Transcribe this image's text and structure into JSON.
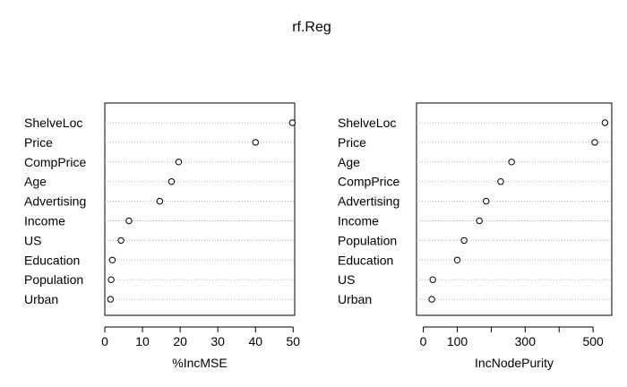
{
  "title": "rf.Reg",
  "chart_data": [
    {
      "type": "scatter",
      "title": "",
      "xlabel": "%IncMSE",
      "ylabel": "",
      "xlim": [
        0,
        50.4
      ],
      "xticks": [
        0,
        10,
        20,
        30,
        40,
        50
      ],
      "categories": [
        "ShelveLoc",
        "Price",
        "CompPrice",
        "Age",
        "Advertising",
        "Income",
        "US",
        "Education",
        "Population",
        "Urban"
      ],
      "values": [
        49.8,
        40.0,
        19.6,
        17.7,
        14.6,
        6.4,
        4.3,
        2.0,
        1.7,
        1.5
      ],
      "grid": "dotted horizontal guides"
    },
    {
      "type": "scatter",
      "title": "",
      "xlabel": "IncNodePurity",
      "ylabel": "",
      "xlim": [
        -20,
        555
      ],
      "xticks": [
        0,
        100,
        300,
        500
      ],
      "minor_ticks": [
        200,
        400
      ],
      "categories": [
        "ShelveLoc",
        "Price",
        "Age",
        "CompPrice",
        "Advertising",
        "Income",
        "Population",
        "Education",
        "US",
        "Urban"
      ],
      "values": [
        535,
        505,
        260,
        228,
        185,
        165,
        120,
        100,
        28,
        25
      ],
      "grid": "dotted horizontal guides"
    }
  ]
}
